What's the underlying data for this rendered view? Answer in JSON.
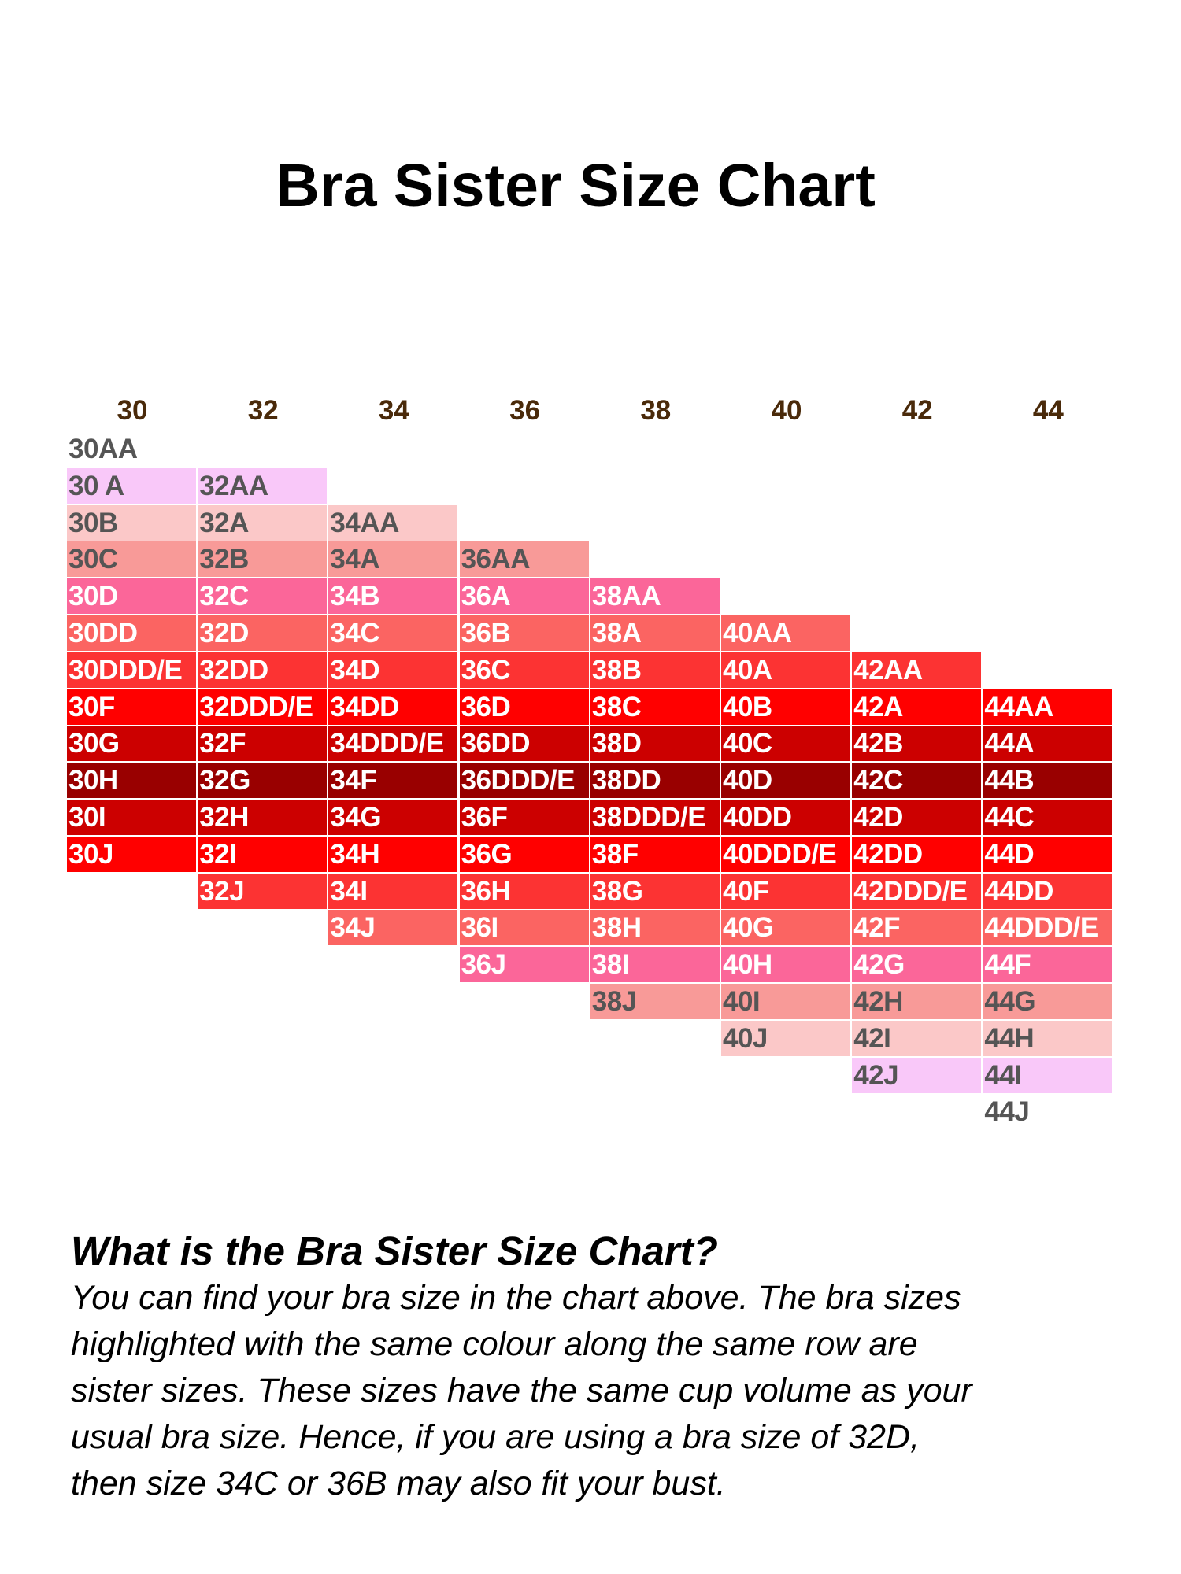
{
  "title": "Bra Sister Size Chart",
  "chart_data": {
    "type": "table",
    "title": "Bra Sister Size Chart",
    "band_sizes": [
      "30",
      "32",
      "34",
      "36",
      "38",
      "40",
      "42",
      "44"
    ],
    "columns": [
      {
        "band": "30",
        "sizes": [
          "30AA",
          "30 A",
          "30B",
          "30C",
          "30D",
          "30DD",
          "30DDD/E",
          "30F",
          "30G",
          "30H",
          "30I",
          "30J"
        ]
      },
      {
        "band": "32",
        "sizes": [
          "32AA",
          "32A",
          "32B",
          "32C",
          "32D",
          "32DD",
          "32DDD/E",
          "32F",
          "32G",
          "32H",
          "32I",
          "32J"
        ]
      },
      {
        "band": "34",
        "sizes": [
          "34AA",
          "34A",
          "34B",
          "34C",
          "34D",
          "34DD",
          "34DDD/E",
          "34F",
          "34G",
          "34H",
          "34I",
          "34J"
        ]
      },
      {
        "band": "36",
        "sizes": [
          "36AA",
          "36A",
          "36B",
          "36C",
          "36D",
          "36DD",
          "36DDD/E",
          "36F",
          "36G",
          "36H",
          "36I",
          "36J"
        ]
      },
      {
        "band": "38",
        "sizes": [
          "38AA",
          "38A",
          "38B",
          "38C",
          "38D",
          "38DD",
          "38DDD/E",
          "38F",
          "38G",
          "38H",
          "38I",
          "38J"
        ]
      },
      {
        "band": "40",
        "sizes": [
          "40AA",
          "40A",
          "40B",
          "40C",
          "40D",
          "40DD",
          "40DDD/E",
          "40F",
          "40G",
          "40H",
          "40I",
          "40J"
        ]
      },
      {
        "band": "42",
        "sizes": [
          "42AA",
          "42A",
          "42B",
          "42C",
          "42D",
          "42DD",
          "42DDD/E",
          "42F",
          "42G",
          "42H",
          "42I",
          "42J"
        ]
      },
      {
        "band": "44",
        "sizes": [
          "44AA",
          "44A",
          "44B",
          "44C",
          "44D",
          "44DD",
          "44DDD/E",
          "44F",
          "44G",
          "44H",
          "44I",
          "44J"
        ]
      }
    ],
    "row_colors": [
      "#ffffff",
      "#f9c8f9",
      "#fbc8c8",
      "#f89a98",
      "#fb6699",
      "#fb6462",
      "#fc3333",
      "#ff0000",
      "#cc0000",
      "#990000",
      "#cc0000",
      "#ff0000",
      "#fc3333",
      "#fb6462",
      "#fb6699",
      "#f89a98",
      "#fbc8c8",
      "#f9c8f9",
      "#ffffff"
    ],
    "dark_text_rows": [
      0,
      1,
      2,
      3,
      15,
      16,
      17,
      18
    ],
    "text_colors": {
      "dark": "#555555",
      "light": "#ffffff"
    },
    "header_color": "#4a2a0a"
  },
  "info": {
    "heading": "What is the Bra Sister Size Chart?",
    "lines": [
      "You can find your bra size in the chart above. The bra sizes",
      "highlighted with the same colour along the same row are",
      "sister sizes. These sizes have the same cup volume as your",
      "usual bra size. Hence, if you are using a bra size of 32D,",
      "then size 34C or 36B may also fit your bust."
    ]
  }
}
